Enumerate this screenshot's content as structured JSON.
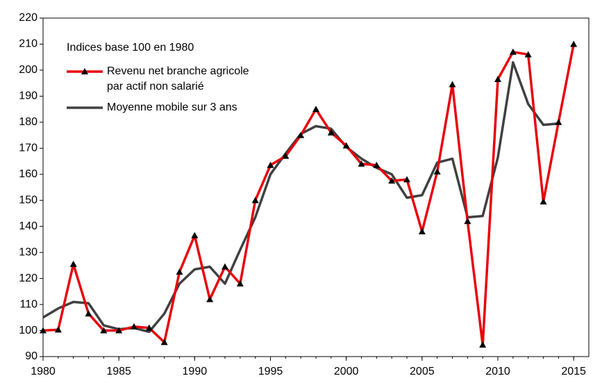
{
  "chart_data": {
    "type": "line",
    "annotation": "Indices base 100 en 1980",
    "x": [
      1980,
      1981,
      1982,
      1983,
      1984,
      1985,
      1986,
      1987,
      1988,
      1989,
      1990,
      1991,
      1992,
      1993,
      1994,
      1995,
      1996,
      1997,
      1998,
      1999,
      2000,
      2001,
      2002,
      2003,
      2004,
      2005,
      2006,
      2007,
      2008,
      2009,
      2010,
      2011,
      2012,
      2013,
      2014,
      2015
    ],
    "series": [
      {
        "name": "Revenu net branche agricole\npar actif non salarié",
        "color": "#e8000b",
        "marker": "triangle",
        "values": [
          100,
          100.3,
          125.5,
          106.5,
          100,
          100,
          101.5,
          101,
          95.5,
          122.5,
          136.5,
          112,
          124.5,
          118,
          150,
          163.5,
          167,
          175,
          185,
          176,
          171,
          164,
          163.5,
          157.5,
          158,
          138,
          161,
          194.5,
          142,
          94.5,
          196.5,
          207,
          206,
          149.5,
          180,
          210
        ]
      },
      {
        "name": "Moyenne mobile sur 3 ans",
        "color": "#404040",
        "values": [
          105,
          108.5,
          111,
          110.5,
          102,
          100.5,
          101,
          99.5,
          106.5,
          118,
          123.5,
          124.5,
          118,
          131,
          143.5,
          160,
          168,
          175.5,
          178.5,
          177.5,
          170.5,
          166,
          162.5,
          160,
          151,
          152,
          164.5,
          166,
          143.5,
          144,
          166.5,
          203,
          187,
          179,
          179.5,
          null
        ]
      }
    ],
    "xlim": [
      1980,
      2016
    ],
    "xticks": [
      1980,
      1985,
      1990,
      1995,
      2000,
      2005,
      2010,
      2015
    ],
    "ylim": [
      90,
      220
    ],
    "yticks": [
      90,
      100,
      110,
      120,
      130,
      140,
      150,
      160,
      170,
      180,
      190,
      200,
      210,
      220
    ],
    "grid": false
  }
}
